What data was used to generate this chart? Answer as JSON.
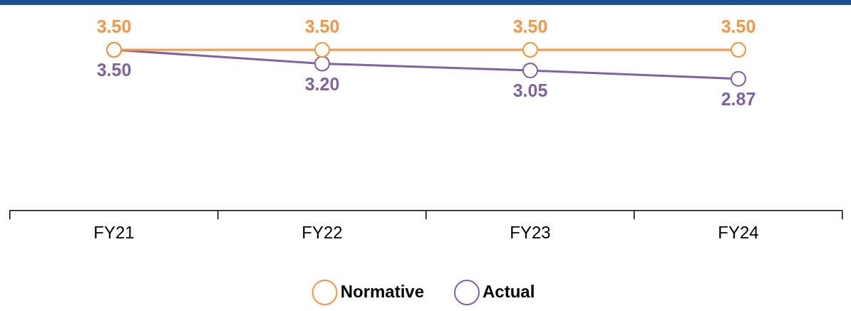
{
  "chart_data": {
    "type": "line",
    "categories": [
      "FY21",
      "FY22",
      "FY23",
      "FY24"
    ],
    "series": [
      {
        "name": "Normative",
        "color": "#f79646",
        "values": [
          3.5,
          3.5,
          3.5,
          3.5
        ],
        "value_labels": [
          "3.50",
          "3.50",
          "3.50",
          "3.50"
        ]
      },
      {
        "name": "Actual",
        "color": "#8064a2",
        "values": [
          3.5,
          3.2,
          3.05,
          2.87
        ],
        "value_labels": [
          "3.50",
          "3.20",
          "3.05",
          "2.87"
        ]
      }
    ],
    "tick_labels": "x",
    "grid": false,
    "legend": "bottom",
    "marker": "circle",
    "line_style": "solid"
  }
}
